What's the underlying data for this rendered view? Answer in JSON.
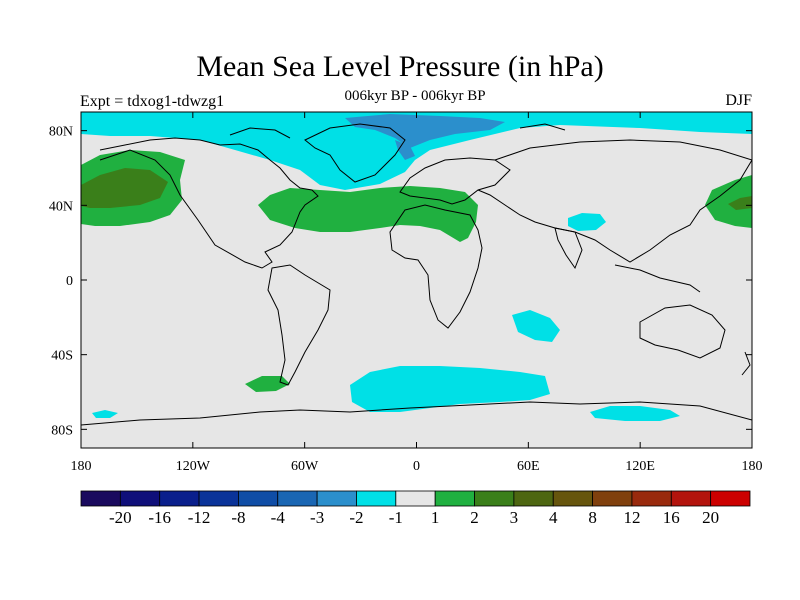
{
  "title": "Mean Sea Level Pressure (in hPa)",
  "subtitle": "006kyr BP - 006kyr BP",
  "left_label": "Expt = tdxog1-tdwzg1",
  "right_label": "DJF",
  "axes": {
    "lon_ticks": [
      "180",
      "120W",
      "60W",
      "0",
      "60E",
      "120E",
      "180"
    ],
    "lon_values": [
      -180,
      -120,
      -60,
      0,
      60,
      120,
      180
    ],
    "lat_ticks": [
      "80N",
      "40N",
      "0",
      "40S",
      "80S"
    ],
    "lat_values": [
      80,
      40,
      0,
      -40,
      -80
    ],
    "lon_range": [
      -180,
      180
    ],
    "lat_range": [
      -90,
      90
    ]
  },
  "colorbar": {
    "labels": [
      "-20",
      "-16",
      "-12",
      "-8",
      "-4",
      "-3",
      "-2",
      "-1",
      "1",
      "2",
      "3",
      "4",
      "8",
      "12",
      "16",
      "20"
    ],
    "colors": [
      "#1a0a5e",
      "#0f0f7a",
      "#0a1f8c",
      "#0a3399",
      "#0f4da6",
      "#1a66b3",
      "#2b8fcc",
      "#00e0e6",
      "#e6e6e6",
      "#20b040",
      "#3a7f1a",
      "#4d6611",
      "#66550d",
      "#80400d",
      "#992a0d",
      "#b3140d",
      "#cc0000"
    ]
  },
  "regions": [
    {
      "name": "arctic-negative-band",
      "level": "-1 to -2",
      "color": "#00e0e6"
    },
    {
      "name": "greenland-negative-core",
      "level": "-2 to -3",
      "color": "#2b8fcc"
    },
    {
      "name": "north-pacific-positive",
      "level": "1 to 3",
      "color": "#20b040"
    },
    {
      "name": "atlantic-mediterranean-positive",
      "level": "1 to 2",
      "color": "#20b040"
    },
    {
      "name": "southern-ocean-negative",
      "level": "-1 to -2",
      "color": "#00e0e6"
    }
  ],
  "background_color": "#e6e6e6"
}
